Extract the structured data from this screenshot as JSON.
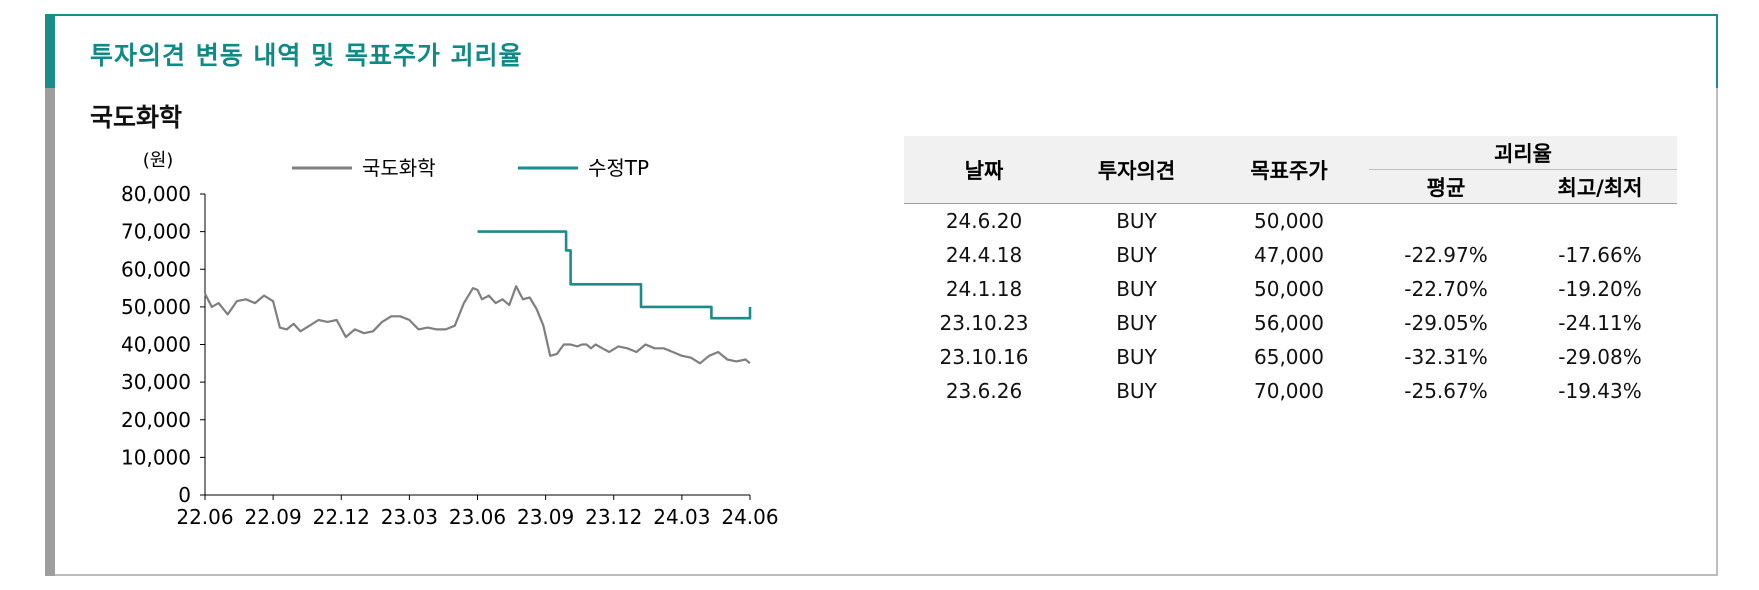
{
  "title": "투자의견 변동 내역 및 목표주가 괴리율",
  "subtitle": "국도화학",
  "colors": {
    "accent": "#0f8a86",
    "stock": "#7f7f7f",
    "tp": "#1a8c89"
  },
  "chart_data": {
    "type": "line",
    "unit_label": "(원)",
    "y_ticks": [
      "80,000",
      "70,000",
      "60,000",
      "50,000",
      "40,000",
      "30,000",
      "20,000",
      "10,000",
      "0"
    ],
    "x_ticks": [
      "22.06",
      "22.09",
      "22.12",
      "23.03",
      "23.06",
      "23.09",
      "23.12",
      "24.03",
      "24.06"
    ],
    "ylim": [
      0,
      80000
    ],
    "x_range_months": [
      0,
      24
    ],
    "legend": "top",
    "series": [
      {
        "name": "국도화학",
        "color": "#7f7f7f",
        "x": [
          0,
          0.3,
          0.6,
          1.0,
          1.4,
          1.8,
          2.2,
          2.6,
          3.0,
          3.3,
          3.6,
          3.9,
          4.2,
          4.6,
          5.0,
          5.4,
          5.8,
          6.2,
          6.6,
          7.0,
          7.4,
          7.8,
          8.2,
          8.6,
          9.0,
          9.4,
          9.8,
          10.2,
          10.6,
          11.0,
          11.4,
          11.8,
          12.0,
          12.2,
          12.5,
          12.8,
          13.1,
          13.4,
          13.7,
          14.0,
          14.3,
          14.6,
          14.9,
          15.2,
          15.5,
          15.8,
          16.1,
          16.4,
          16.6,
          16.8,
          17.0,
          17.2,
          17.5,
          17.8,
          18.2,
          18.6,
          19.0,
          19.4,
          19.8,
          20.2,
          20.6,
          21.0,
          21.4,
          21.8,
          22.2,
          22.6,
          23.0,
          23.4,
          23.8,
          24.0
        ],
        "y": [
          53500,
          50000,
          51000,
          48000,
          51500,
          52000,
          51000,
          53000,
          51500,
          44500,
          44000,
          45500,
          43500,
          45000,
          46500,
          46000,
          46500,
          42000,
          44000,
          43000,
          43500,
          46000,
          47500,
          47500,
          46500,
          44000,
          44500,
          44000,
          44000,
          45000,
          51000,
          55000,
          54500,
          52000,
          53000,
          51000,
          52000,
          50500,
          55500,
          52000,
          52500,
          49500,
          45000,
          37000,
          37500,
          40000,
          40000,
          39500,
          40000,
          40000,
          39000,
          40000,
          39000,
          38000,
          39500,
          39000,
          38000,
          40000,
          39000,
          39000,
          38000,
          37000,
          36500,
          35000,
          37000,
          38000,
          36000,
          35500,
          36000,
          35000
        ]
      },
      {
        "name": "수정TP",
        "color": "#1a8c89",
        "x": [
          12.0,
          15.9,
          15.9,
          16.1,
          16.1,
          19.2,
          19.2,
          22.3,
          22.3,
          24.0,
          24.0
        ],
        "y": [
          70000,
          70000,
          65000,
          65000,
          56000,
          56000,
          50000,
          50000,
          47000,
          47000,
          50000
        ]
      }
    ]
  },
  "table": {
    "headers": {
      "date": "날짜",
      "opinion": "투자의견",
      "target": "목표주가",
      "gap": "괴리율",
      "avg": "평균",
      "maxmin": "최고/최저"
    },
    "rows": [
      [
        "24.6.20",
        "BUY",
        "50,000",
        "",
        ""
      ],
      [
        "24.4.18",
        "BUY",
        "47,000",
        "-22.97%",
        "-17.66%"
      ],
      [
        "24.1.18",
        "BUY",
        "50,000",
        "-22.70%",
        "-19.20%"
      ],
      [
        "23.10.23",
        "BUY",
        "56,000",
        "-29.05%",
        "-24.11%"
      ],
      [
        "23.10.16",
        "BUY",
        "65,000",
        "-32.31%",
        "-29.08%"
      ],
      [
        "23.6.26",
        "BUY",
        "70,000",
        "-25.67%",
        "-19.43%"
      ]
    ]
  }
}
